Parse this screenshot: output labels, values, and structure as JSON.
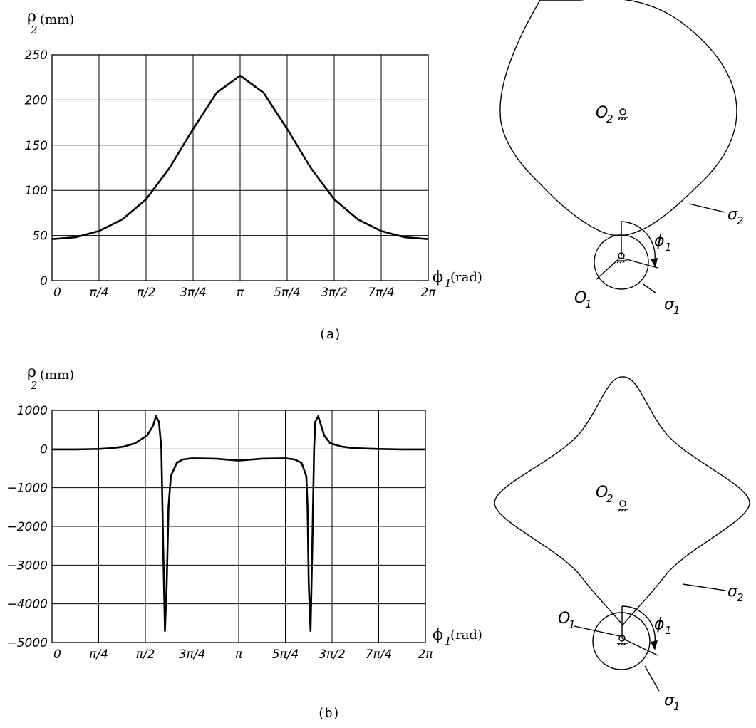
{
  "chart_data": [
    {
      "type": "line",
      "panel": "(a)",
      "ylabel": "ρ",
      "ylabel_sub": "2",
      "yunit": "(mm)",
      "xlabel": "ϕ",
      "xlabel_sub": "1",
      "xunit": "(rad)",
      "x_tick_labels": [
        "0",
        "π/4",
        "π/2",
        "3π/4",
        "π",
        "5π/4",
        "3π/2",
        "7π/4",
        "2π"
      ],
      "y_tick_labels": [
        "250",
        "200",
        "150",
        "100",
        "50",
        "0"
      ],
      "xlim": [
        0,
        6.2832
      ],
      "ylim": [
        0,
        250
      ],
      "grid": true,
      "series": [
        {
          "x": [
            0,
            0.3927,
            0.7854,
            1.1781,
            1.5708,
            1.9635,
            2.3562,
            2.7489,
            3.1416,
            3.5343,
            3.927,
            4.3197,
            4.7124,
            5.1051,
            5.4978,
            5.8905,
            6.2832
          ],
          "values": [
            46,
            48,
            55,
            68,
            90,
            125,
            168,
            208,
            227,
            208,
            168,
            125,
            90,
            68,
            55,
            48,
            46
          ]
        }
      ]
    },
    {
      "type": "line",
      "panel": "(b)",
      "ylabel": "ρ",
      "ylabel_sub": "2",
      "yunit": "(mm)",
      "xlabel": "ϕ",
      "xlabel_sub": "1",
      "xunit": "(rad)",
      "x_tick_labels": [
        "0",
        "π/4",
        "π/2",
        "3π/4",
        "π",
        "5π/4",
        "3π/2",
        "7π/4",
        "2π"
      ],
      "y_tick_labels": [
        "1000",
        "0",
        "−1000",
        "−2000",
        "−3000",
        "−4000",
        "−5000"
      ],
      "xlim": [
        0,
        6.2832
      ],
      "ylim": [
        -5000,
        1000
      ],
      "grid": true,
      "series": [
        {
          "x": [
            0,
            0.3927,
            0.7854,
            1.0,
            1.2,
            1.4,
            1.6,
            1.7,
            1.75,
            1.8,
            1.84,
            1.87,
            1.9,
            1.93,
            1.96,
            2.0,
            2.1,
            2.2,
            2.3562,
            2.7489,
            3.1416,
            3.5343,
            3.927,
            4.0832,
            4.2,
            4.28,
            4.3,
            4.32,
            4.35,
            4.38,
            4.41,
            4.43,
            4.48,
            4.53,
            4.58,
            4.68,
            4.88,
            5.0832,
            5.4978,
            5.8905,
            6.2832
          ],
          "values": [
            -10,
            -10,
            0,
            20,
            60,
            150,
            350,
            600,
            850,
            700,
            0,
            -2500,
            -4700,
            -3500,
            -1500,
            -700,
            -360,
            -270,
            -240,
            -250,
            -300,
            -250,
            -240,
            -270,
            -360,
            -700,
            -1500,
            -3500,
            -4700,
            -2500,
            0,
            700,
            850,
            600,
            350,
            150,
            60,
            20,
            0,
            -10,
            -10
          ]
        }
      ]
    }
  ],
  "diagrams": {
    "a": {
      "caption": "(a)",
      "center_2": "O",
      "center_2_sub": "2",
      "center_1": "O",
      "center_1_sub": "1",
      "curve_2": "σ",
      "curve_2_sub": "2",
      "curve_1": "σ",
      "curve_1_sub": "1",
      "angle": "ϕ",
      "angle_sub": "1"
    },
    "b": {
      "caption": "(b)",
      "center_2": "O",
      "center_2_sub": "2",
      "center_1": "O",
      "center_1_sub": "1",
      "curve_2": "σ",
      "curve_2_sub": "2",
      "curve_1": "σ",
      "curve_1_sub": "1",
      "angle": "ϕ",
      "angle_sub": "1"
    }
  }
}
